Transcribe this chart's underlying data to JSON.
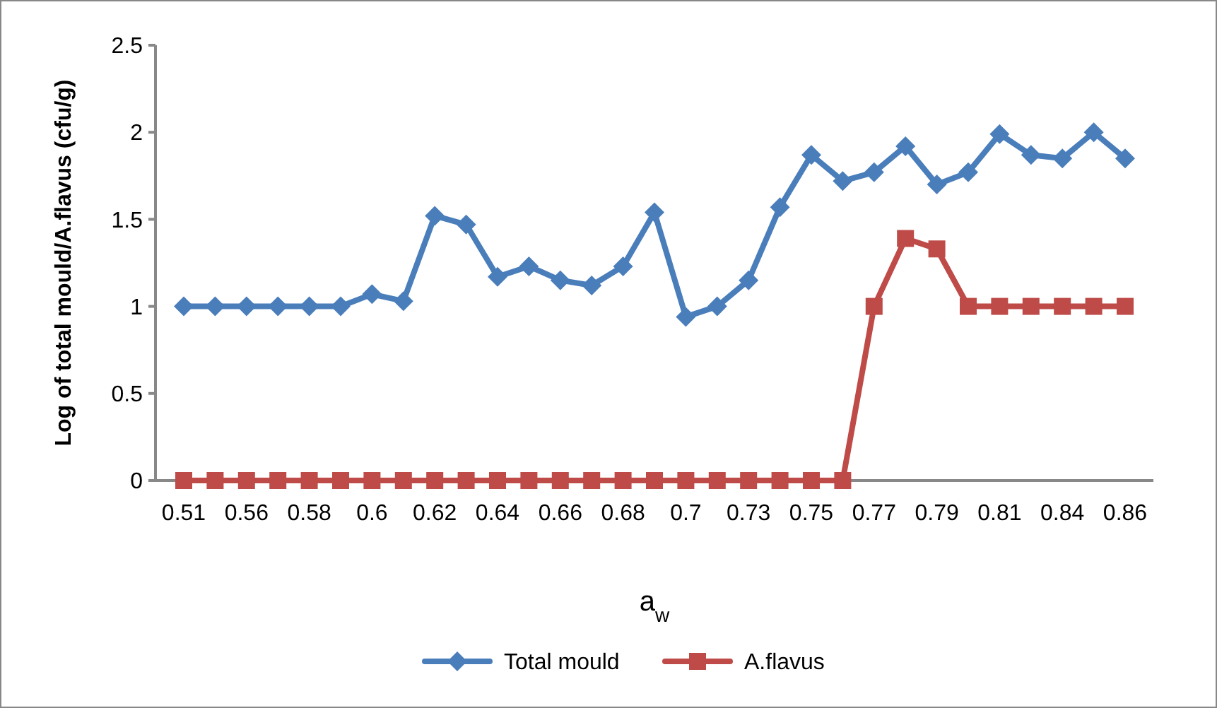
{
  "chart_data": {
    "type": "line",
    "xlabel": "a$_{w}$",
    "ylabel": "Log of total mould/A.flavus (cfu/g)",
    "categories": [
      "0.51",
      null,
      "0.56",
      null,
      "0.58",
      null,
      "0.6",
      null,
      "0.62",
      null,
      "0.64",
      null,
      "0.66",
      null,
      "0.68",
      null,
      "0.7",
      null,
      "0.73",
      null,
      "0.75",
      null,
      "0.77",
      null,
      "0.79",
      null,
      "0.81",
      null,
      "0.84",
      null,
      "0.86"
    ],
    "series": [
      {
        "name": "Total mould",
        "color": "#4a7ebb",
        "marker": "diamond",
        "values": [
          1,
          1,
          1,
          1,
          1,
          1,
          1.07,
          1.03,
          1.52,
          1.47,
          1.17,
          1.23,
          1.15,
          1.12,
          1.23,
          1.54,
          0.94,
          1.0,
          1.15,
          1.57,
          1.87,
          1.72,
          1.77,
          1.92,
          1.7,
          1.77,
          1.99,
          1.87,
          1.85,
          2.0,
          1.85
        ]
      },
      {
        "name": "A.flavus",
        "color": "#be4b48",
        "marker": "square",
        "values": [
          0,
          0,
          0,
          0,
          0,
          0,
          0,
          0,
          0,
          0,
          0,
          0,
          0,
          0,
          0,
          0,
          0,
          0,
          0,
          0,
          0,
          0,
          1,
          1.39,
          1.33,
          1,
          1,
          1,
          1,
          1,
          1
        ]
      }
    ],
    "ylim": [
      0,
      2.5
    ],
    "yticks": [
      0,
      0.5,
      1,
      1.5,
      2,
      2.5
    ],
    "legend": "bottom",
    "grid": false
  }
}
